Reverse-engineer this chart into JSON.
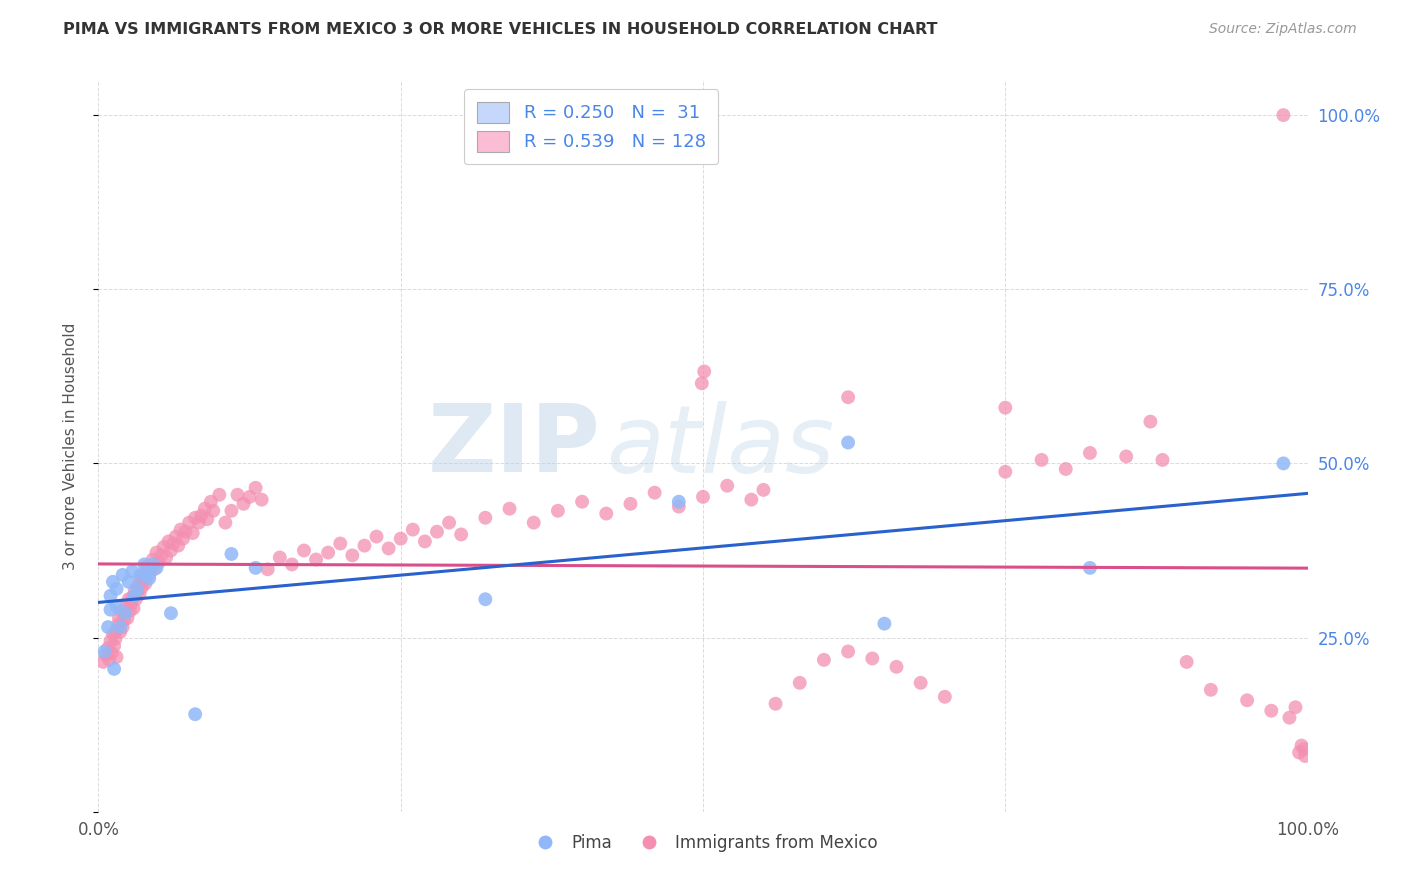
{
  "title": "PIMA VS IMMIGRANTS FROM MEXICO 3 OR MORE VEHICLES IN HOUSEHOLD CORRELATION CHART",
  "source": "Source: ZipAtlas.com",
  "ylabel": "3 or more Vehicles in Household",
  "legend_labels": [
    "Pima",
    "Immigrants from Mexico"
  ],
  "blue_scatter_color": "#90b8f8",
  "pink_scatter_color": "#f48fb1",
  "blue_line_color": "#2962cc",
  "pink_line_color": "#d94f8a",
  "watermark_zip": "ZIP",
  "watermark_atlas": "atlas",
  "background_color": "#ffffff",
  "grid_color": "#cccccc",
  "tick_color": "#4a86e8",
  "legend_blue_fill": "#c5d8fc",
  "legend_pink_fill": "#fbbdd3",
  "blue_points_x": [
    0.005,
    0.008,
    0.01,
    0.01,
    0.012,
    0.013,
    0.015,
    0.015,
    0.018,
    0.02,
    0.022,
    0.025,
    0.028,
    0.03,
    0.032,
    0.035,
    0.038,
    0.04,
    0.042,
    0.045,
    0.048,
    0.06,
    0.08,
    0.11,
    0.13,
    0.32,
    0.48,
    0.62,
    0.65,
    0.82,
    0.98
  ],
  "blue_points_y": [
    0.23,
    0.265,
    0.29,
    0.31,
    0.33,
    0.205,
    0.295,
    0.32,
    0.265,
    0.34,
    0.285,
    0.33,
    0.345,
    0.31,
    0.32,
    0.34,
    0.355,
    0.34,
    0.335,
    0.355,
    0.35,
    0.285,
    0.14,
    0.37,
    0.35,
    0.305,
    0.445,
    0.53,
    0.27,
    0.35,
    0.5
  ],
  "pink_points_x": [
    0.004,
    0.006,
    0.008,
    0.009,
    0.01,
    0.011,
    0.012,
    0.013,
    0.014,
    0.015,
    0.015,
    0.016,
    0.017,
    0.018,
    0.019,
    0.02,
    0.021,
    0.022,
    0.023,
    0.024,
    0.025,
    0.026,
    0.027,
    0.028,
    0.029,
    0.03,
    0.031,
    0.032,
    0.033,
    0.034,
    0.035,
    0.036,
    0.037,
    0.038,
    0.039,
    0.04,
    0.042,
    0.043,
    0.045,
    0.046,
    0.048,
    0.05,
    0.052,
    0.054,
    0.056,
    0.058,
    0.06,
    0.062,
    0.064,
    0.066,
    0.068,
    0.07,
    0.072,
    0.075,
    0.078,
    0.08,
    0.083,
    0.085,
    0.088,
    0.09,
    0.093,
    0.095,
    0.1,
    0.105,
    0.11,
    0.115,
    0.12,
    0.125,
    0.13,
    0.135,
    0.14,
    0.15,
    0.16,
    0.17,
    0.18,
    0.19,
    0.2,
    0.21,
    0.22,
    0.23,
    0.24,
    0.25,
    0.26,
    0.27,
    0.28,
    0.29,
    0.3,
    0.32,
    0.34,
    0.36,
    0.38,
    0.4,
    0.42,
    0.44,
    0.46,
    0.48,
    0.5,
    0.52,
    0.54,
    0.55,
    0.56,
    0.58,
    0.6,
    0.62,
    0.64,
    0.66,
    0.68,
    0.7,
    0.75,
    0.78,
    0.8,
    0.82,
    0.85,
    0.88,
    0.9,
    0.92,
    0.95,
    0.97,
    0.985,
    0.99,
    0.993,
    0.995,
    0.997,
    0.998,
    0.499,
    0.501,
    0.62,
    0.75,
    0.87,
    0.98
  ],
  "pink_points_y": [
    0.215,
    0.225,
    0.235,
    0.218,
    0.245,
    0.228,
    0.255,
    0.238,
    0.248,
    0.26,
    0.222,
    0.268,
    0.278,
    0.258,
    0.288,
    0.265,
    0.275,
    0.285,
    0.295,
    0.278,
    0.305,
    0.288,
    0.298,
    0.308,
    0.292,
    0.318,
    0.305,
    0.315,
    0.325,
    0.312,
    0.335,
    0.322,
    0.332,
    0.342,
    0.328,
    0.352,
    0.34,
    0.35,
    0.362,
    0.348,
    0.372,
    0.358,
    0.368,
    0.38,
    0.365,
    0.388,
    0.375,
    0.385,
    0.395,
    0.382,
    0.405,
    0.392,
    0.402,
    0.415,
    0.4,
    0.422,
    0.415,
    0.425,
    0.435,
    0.42,
    0.445,
    0.432,
    0.455,
    0.415,
    0.432,
    0.455,
    0.442,
    0.452,
    0.465,
    0.448,
    0.348,
    0.365,
    0.355,
    0.375,
    0.362,
    0.372,
    0.385,
    0.368,
    0.382,
    0.395,
    0.378,
    0.392,
    0.405,
    0.388,
    0.402,
    0.415,
    0.398,
    0.422,
    0.435,
    0.415,
    0.432,
    0.445,
    0.428,
    0.442,
    0.458,
    0.438,
    0.452,
    0.468,
    0.448,
    0.462,
    0.155,
    0.185,
    0.218,
    0.23,
    0.22,
    0.208,
    0.185,
    0.165,
    0.488,
    0.505,
    0.492,
    0.515,
    0.51,
    0.505,
    0.215,
    0.175,
    0.16,
    0.145,
    0.135,
    0.15,
    0.085,
    0.095,
    0.09,
    0.08,
    0.615,
    0.632,
    0.595,
    0.58,
    0.56,
    1.0
  ]
}
